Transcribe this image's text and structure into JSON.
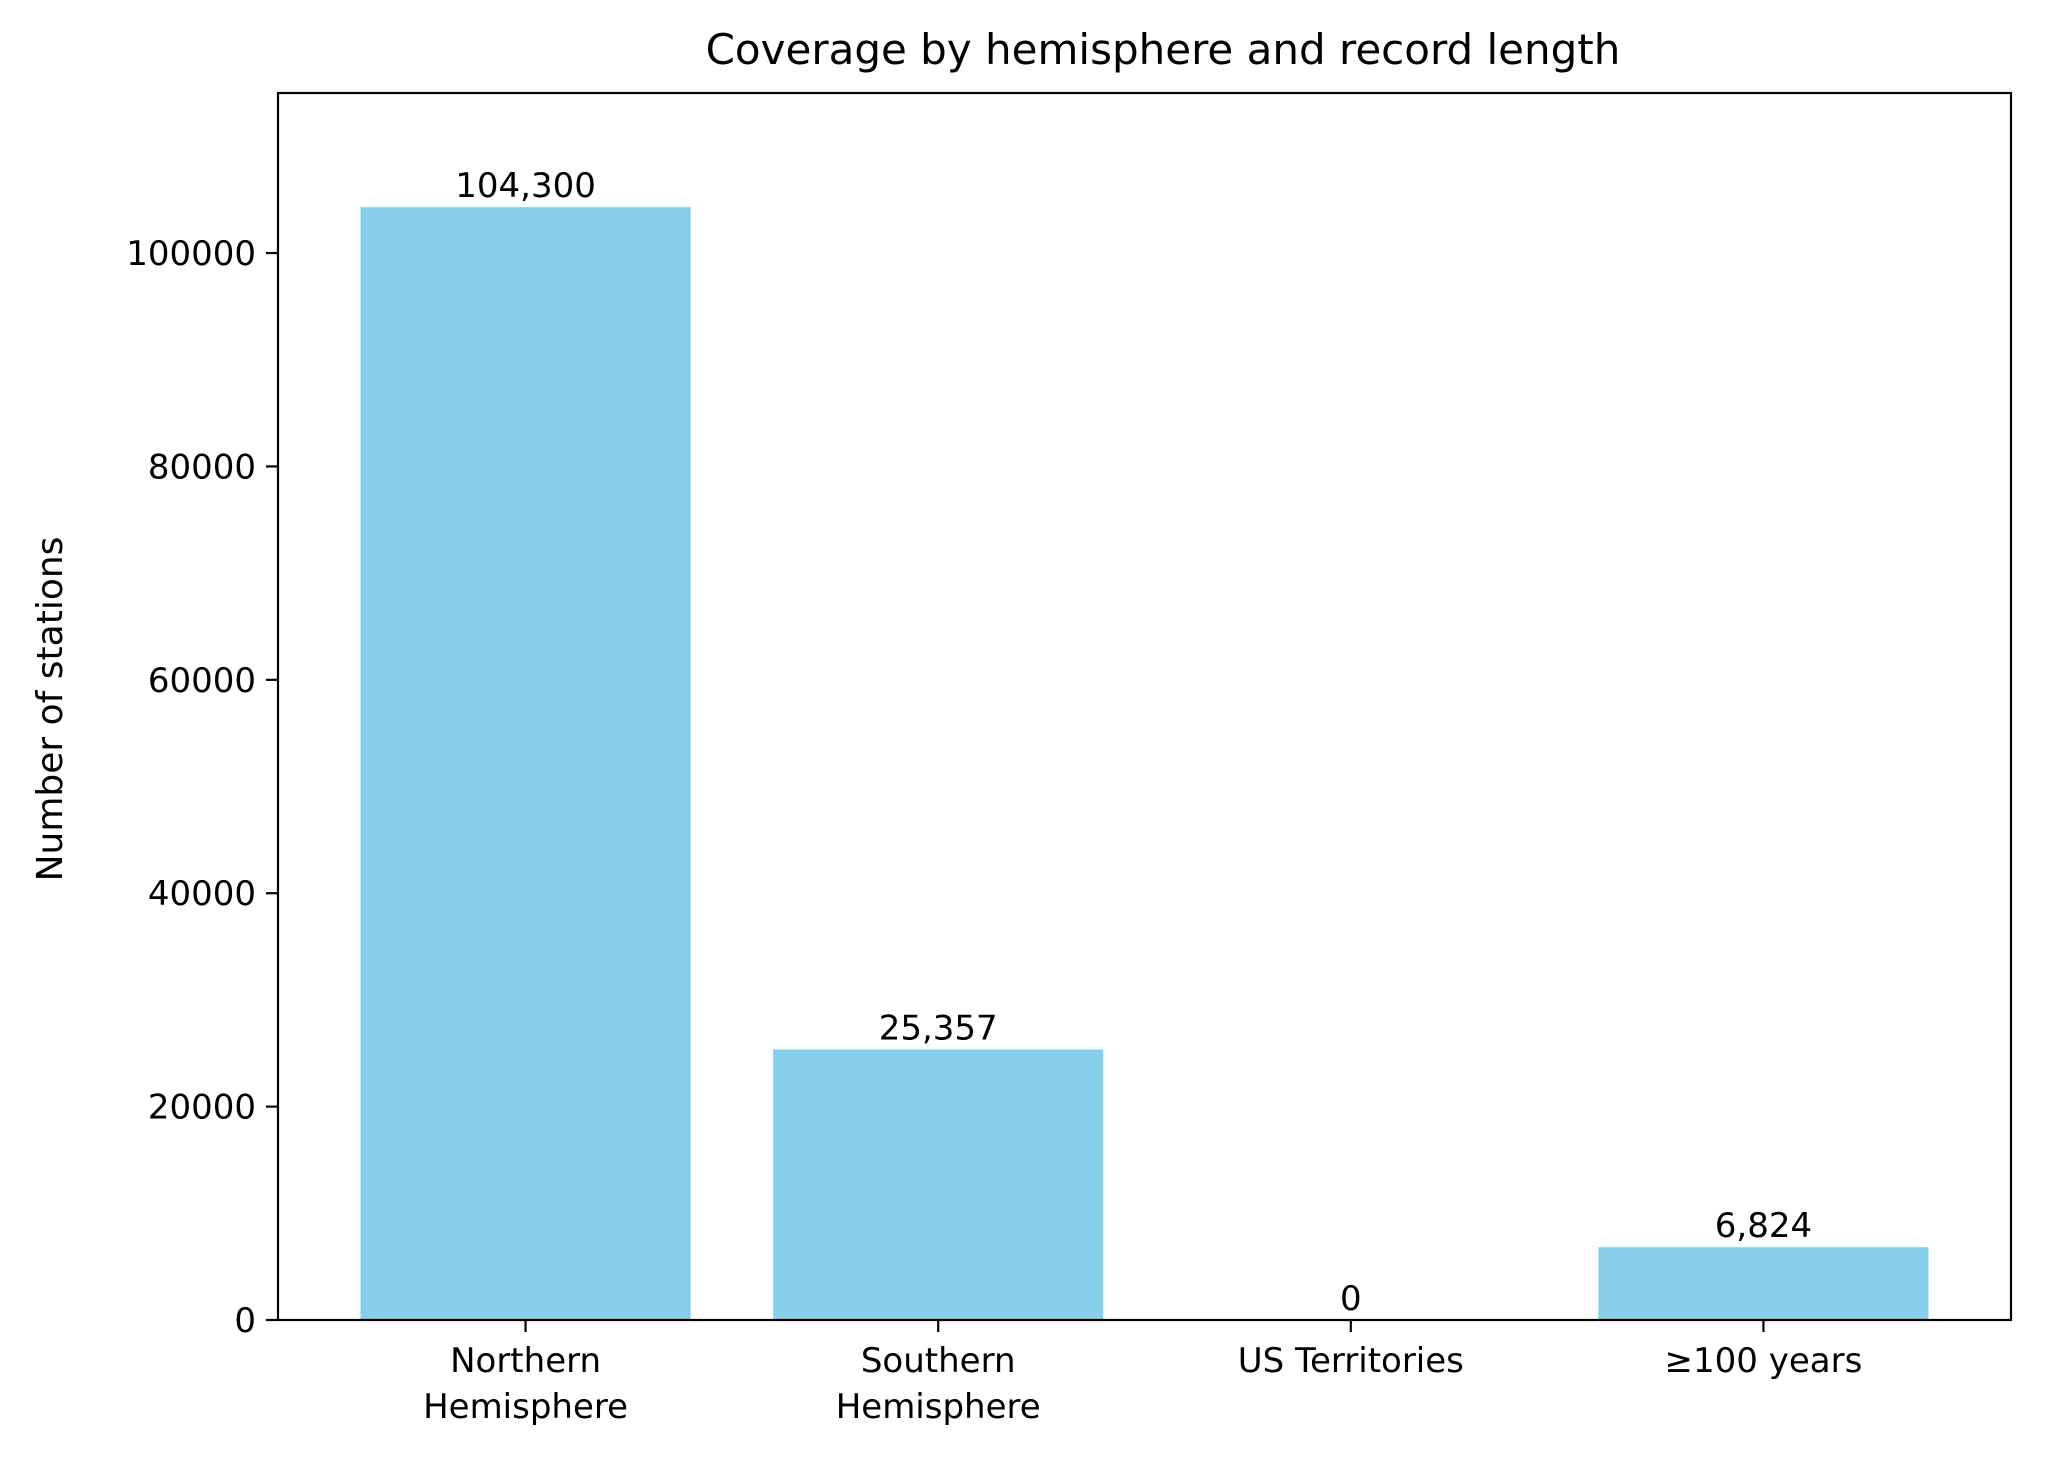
{
  "chart_data": {
    "type": "bar",
    "title": "Coverage by hemisphere and record length",
    "xlabel": "",
    "ylabel": "Number of stations",
    "categories": [
      [
        "Northern",
        "Hemisphere"
      ],
      [
        "Southern",
        "Hemisphere"
      ],
      [
        "US Territories"
      ],
      [
        "≥100 years"
      ]
    ],
    "values": [
      104300,
      25357,
      0,
      6824
    ],
    "value_labels": [
      "104,300",
      "25,357",
      "0",
      "6,824"
    ],
    "ylim": [
      0,
      115000
    ],
    "yticks": [
      0,
      20000,
      40000,
      60000,
      80000,
      100000
    ],
    "ytick_labels": [
      "0",
      "20000",
      "40000",
      "60000",
      "80000",
      "100000"
    ],
    "bar_color": "#87CEEB",
    "grid": false,
    "legend": "none"
  }
}
